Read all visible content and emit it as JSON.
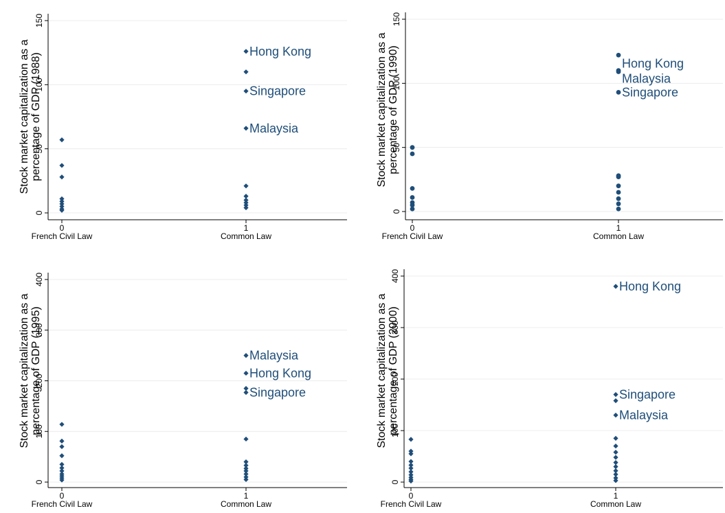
{
  "colors": {
    "marker": "#1f4e79",
    "label": "#1f4e79",
    "grid": "#ececec"
  },
  "chart_data": [
    {
      "type": "scatter",
      "marker": "diamond",
      "ylabel_lines": [
        "Stock market capitalization as a",
        "percentage of GDP (1988)"
      ],
      "ylim": [
        0,
        150
      ],
      "yticks": [
        "0",
        "50",
        "100",
        "150"
      ],
      "xticks": [
        {
          "x": 0,
          "num": "0",
          "label": "French Civil Law"
        },
        {
          "x": 1,
          "num": "1",
          "label": "Common Law"
        }
      ],
      "grid": true,
      "points": [
        {
          "x": 0,
          "y": 57
        },
        {
          "x": 0,
          "y": 37
        },
        {
          "x": 0,
          "y": 28
        },
        {
          "x": 0,
          "y": 11
        },
        {
          "x": 0,
          "y": 9
        },
        {
          "x": 0,
          "y": 7
        },
        {
          "x": 0,
          "y": 5
        },
        {
          "x": 0,
          "y": 3
        },
        {
          "x": 0,
          "y": 2
        },
        {
          "x": 1,
          "y": 126,
          "label": "Hong Kong"
        },
        {
          "x": 1,
          "y": 110
        },
        {
          "x": 1,
          "y": 95,
          "label": "Singapore"
        },
        {
          "x": 1,
          "y": 66,
          "label": "Malaysia"
        },
        {
          "x": 1,
          "y": 21
        },
        {
          "x": 1,
          "y": 13
        },
        {
          "x": 1,
          "y": 10
        },
        {
          "x": 1,
          "y": 8
        },
        {
          "x": 1,
          "y": 6
        },
        {
          "x": 1,
          "y": 4
        }
      ]
    },
    {
      "type": "scatter",
      "marker": "circle",
      "ylabel_lines": [
        "Stock market capitalization as a",
        "percentage of GDP (1990)"
      ],
      "ylim": [
        0,
        150
      ],
      "yticks": [
        "0",
        "50",
        "100",
        "150"
      ],
      "xticks": [
        {
          "x": 0,
          "num": "0",
          "label": "French Civil Law"
        },
        {
          "x": 1,
          "num": "1",
          "label": "Common Law"
        }
      ],
      "grid": true,
      "points": [
        {
          "x": 0,
          "y": 50
        },
        {
          "x": 0,
          "y": 45
        },
        {
          "x": 0,
          "y": 18
        },
        {
          "x": 0,
          "y": 11
        },
        {
          "x": 0,
          "y": 7
        },
        {
          "x": 0,
          "y": 5
        },
        {
          "x": 0,
          "y": 2
        },
        {
          "x": 1,
          "y": 122
        },
        {
          "x": 1,
          "y": 110,
          "label": "Hong Kong",
          "label_dy": -10
        },
        {
          "x": 1,
          "y": 109,
          "label": "Malaysia",
          "label_dy": 10
        },
        {
          "x": 1,
          "y": 93,
          "label": "Singapore"
        },
        {
          "x": 1,
          "y": 28
        },
        {
          "x": 1,
          "y": 27
        },
        {
          "x": 1,
          "y": 20
        },
        {
          "x": 1,
          "y": 15
        },
        {
          "x": 1,
          "y": 10
        },
        {
          "x": 1,
          "y": 6
        },
        {
          "x": 1,
          "y": 2
        }
      ]
    },
    {
      "type": "scatter",
      "marker": "diamond",
      "ylabel_lines": [
        "Stock market capitalization as a",
        "percentage of GDP (1995)"
      ],
      "ylim": [
        0,
        400
      ],
      "yticks": [
        "0",
        "100",
        "200",
        "300",
        "400"
      ],
      "xticks": [
        {
          "x": 0,
          "num": "0",
          "label": "French Civil Law"
        },
        {
          "x": 1,
          "num": "1",
          "label": "Common Law"
        }
      ],
      "grid": true,
      "points": [
        {
          "x": 0,
          "y": 114
        },
        {
          "x": 0,
          "y": 81
        },
        {
          "x": 0,
          "y": 70
        },
        {
          "x": 0,
          "y": 52
        },
        {
          "x": 0,
          "y": 35
        },
        {
          "x": 0,
          "y": 28
        },
        {
          "x": 0,
          "y": 22
        },
        {
          "x": 0,
          "y": 16
        },
        {
          "x": 0,
          "y": 12
        },
        {
          "x": 0,
          "y": 8
        },
        {
          "x": 0,
          "y": 4
        },
        {
          "x": 1,
          "y": 250,
          "label": "Malaysia"
        },
        {
          "x": 1,
          "y": 215,
          "label": "Hong Kong"
        },
        {
          "x": 1,
          "y": 185
        },
        {
          "x": 1,
          "y": 177,
          "label": "Singapore"
        },
        {
          "x": 1,
          "y": 85
        },
        {
          "x": 1,
          "y": 40
        },
        {
          "x": 1,
          "y": 33
        },
        {
          "x": 1,
          "y": 27
        },
        {
          "x": 1,
          "y": 22
        },
        {
          "x": 1,
          "y": 16
        },
        {
          "x": 1,
          "y": 10
        },
        {
          "x": 1,
          "y": 5
        }
      ]
    },
    {
      "type": "scatter",
      "marker": "diamond",
      "ylabel_lines": [
        "Stock market capitalization as a",
        "percentage of GDP (2000)"
      ],
      "ylim": [
        0,
        400
      ],
      "yticks": [
        "0",
        "100",
        "200",
        "300",
        "400"
      ],
      "xticks": [
        {
          "x": 0,
          "num": "0",
          "label": "French Civil Law"
        },
        {
          "x": 1,
          "num": "1",
          "label": "Common Law"
        }
      ],
      "grid": true,
      "points": [
        {
          "x": 0,
          "y": 83
        },
        {
          "x": 0,
          "y": 60
        },
        {
          "x": 0,
          "y": 55
        },
        {
          "x": 0,
          "y": 40
        },
        {
          "x": 0,
          "y": 33
        },
        {
          "x": 0,
          "y": 27
        },
        {
          "x": 0,
          "y": 20
        },
        {
          "x": 0,
          "y": 14
        },
        {
          "x": 0,
          "y": 9
        },
        {
          "x": 0,
          "y": 5
        },
        {
          "x": 0,
          "y": 2
        },
        {
          "x": 1,
          "y": 380,
          "label": "Hong Kong"
        },
        {
          "x": 1,
          "y": 170,
          "label": "Singapore"
        },
        {
          "x": 1,
          "y": 158
        },
        {
          "x": 1,
          "y": 130,
          "label": "Malaysia"
        },
        {
          "x": 1,
          "y": 85
        },
        {
          "x": 1,
          "y": 70
        },
        {
          "x": 1,
          "y": 58
        },
        {
          "x": 1,
          "y": 48
        },
        {
          "x": 1,
          "y": 38
        },
        {
          "x": 1,
          "y": 30
        },
        {
          "x": 1,
          "y": 22
        },
        {
          "x": 1,
          "y": 15
        },
        {
          "x": 1,
          "y": 8
        },
        {
          "x": 1,
          "y": 3
        }
      ]
    }
  ]
}
